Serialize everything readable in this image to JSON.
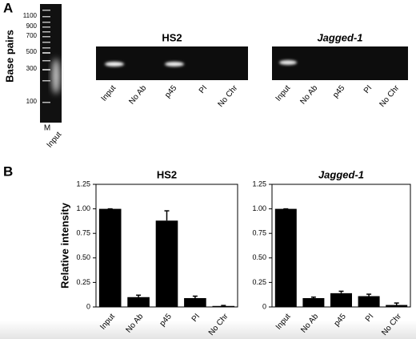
{
  "panel_labels": [
    "A",
    "B"
  ],
  "gel": {
    "ladder_axis_label": "Base pairs",
    "ladder_ticks": [
      1100,
      900,
      700,
      500,
      300,
      100
    ],
    "ladder_lanes": [
      "M",
      "Input"
    ],
    "panels": [
      {
        "title": "HS2",
        "title_style": "bold",
        "lanes": [
          "Input",
          "No Ab",
          "p45",
          "PI",
          "No Chr"
        ]
      },
      {
        "title": "Jagged-1",
        "title_style": "bold-italic",
        "lanes": [
          "Input",
          "No Ab",
          "p45",
          "PI",
          "No Chr"
        ]
      }
    ]
  },
  "chart_data": [
    {
      "type": "bar",
      "title": "HS2",
      "title_style": "bold",
      "y_label": "Relative intensity",
      "categories": [
        "Input",
        "No Ab",
        "p45",
        "PI",
        "No Chr"
      ],
      "values": [
        1.0,
        0.1,
        0.88,
        0.09,
        0.01
      ],
      "errors": [
        0,
        0.02,
        0.1,
        0.02,
        0.005
      ],
      "color": "#000000",
      "ylim": [
        0,
        1.25
      ],
      "yticks": [
        0,
        0.25,
        {
          "value": 0.5,
          "label": "0.50"
        },
        0.75,
        {
          "value": 1,
          "label": "1.00"
        },
        1.25
      ]
    },
    {
      "type": "bar",
      "title": "Jagged-1",
      "title_style": "bold-italic",
      "categories": [
        "Input",
        "No Ab",
        "p45",
        "PI",
        "No Chr"
      ],
      "values": [
        1.0,
        0.09,
        0.14,
        0.11,
        0.02
      ],
      "errors": [
        0,
        0.01,
        0.02,
        0.02,
        0.02
      ],
      "color": "#000000",
      "ylim": [
        0,
        1.25
      ],
      "yticks": [
        0,
        0.25,
        {
          "value": 0.5,
          "label": "0.50"
        },
        0.75,
        {
          "value": 1,
          "label": "1.00"
        },
        1.25
      ]
    }
  ]
}
